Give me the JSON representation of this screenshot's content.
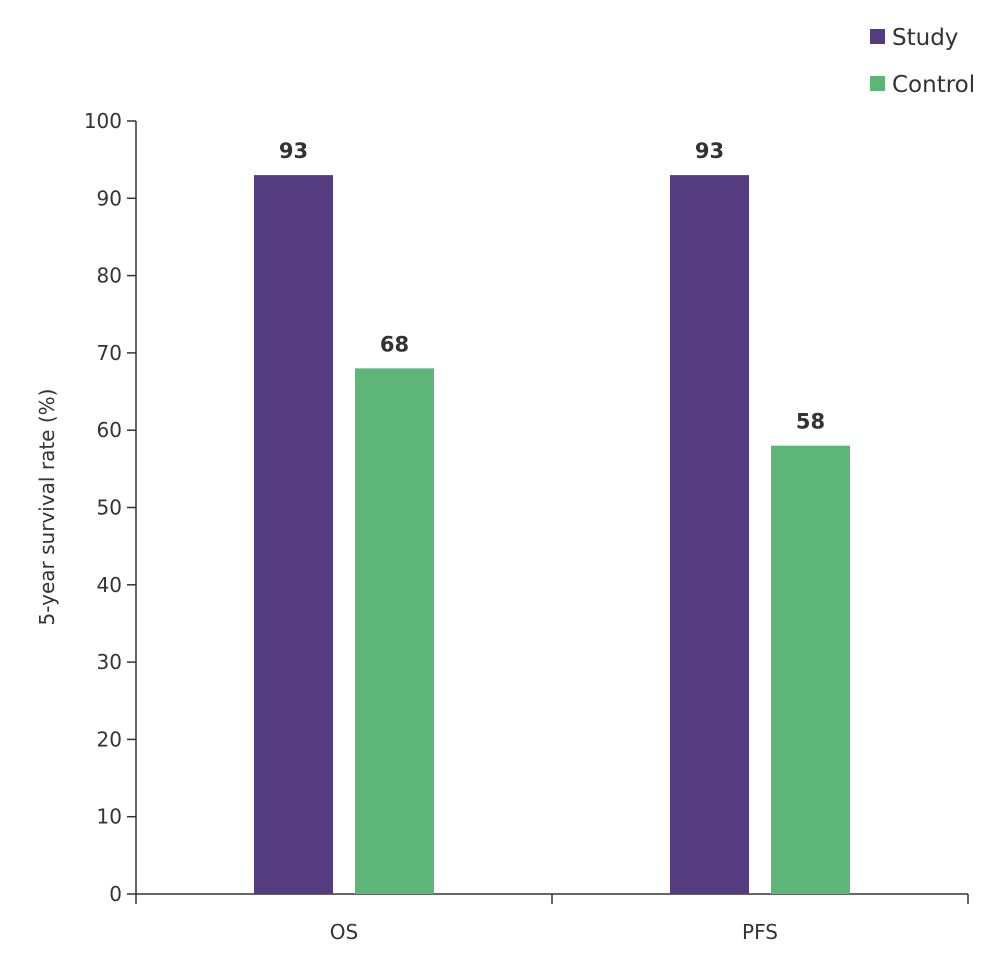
{
  "chart_data": {
    "type": "bar",
    "title": "",
    "xlabel": "",
    "ylabel": "5-year survival rate (%)",
    "categories": [
      "OS",
      "PFS"
    ],
    "series": [
      {
        "name": "Study",
        "color": "#553c80",
        "values": [
          93,
          93
        ]
      },
      {
        "name": "Control",
        "color": "#5db678",
        "values": [
          68,
          58
        ]
      }
    ],
    "ylim": [
      0,
      100
    ],
    "yticks": [
      0,
      10,
      20,
      30,
      40,
      50,
      60,
      70,
      80,
      90,
      100
    ],
    "grid": false,
    "legend_position": "top-right",
    "data_labels": true
  }
}
